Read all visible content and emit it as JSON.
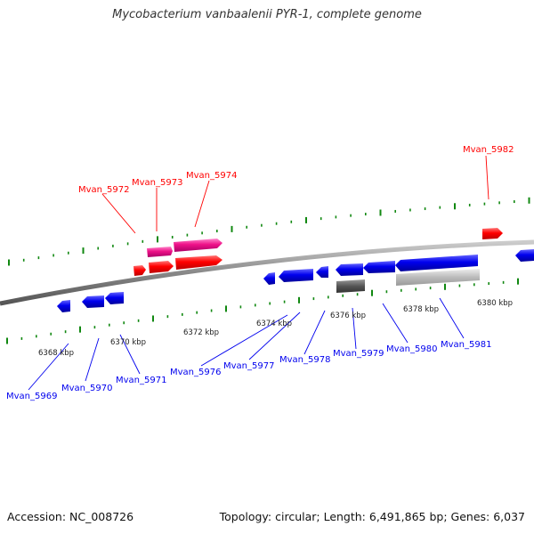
{
  "title": "Mycobacterium vanbaalenii PYR-1, complete genome",
  "accession_label": "Accession: NC_008726",
  "summary_label": "Topology: circular; Length: 6,491,865 bp; Genes: 6,037",
  "colors": {
    "forward_gene": "#ff0000",
    "forward_rna": "#ee1188",
    "reverse_gene": "#0000ee",
    "other_dark": "#555555",
    "other_light": "#bbbbbb",
    "tick": "#118811",
    "backbone": "#888888"
  },
  "kbp_labels": [
    "6368 kbp",
    "6370 kbp",
    "6372 kbp",
    "6374 kbp",
    "6376 kbp",
    "6378 kbp",
    "6380 kbp"
  ],
  "forward_genes": [
    "Mvan_5972",
    "Mvan_5973",
    "Mvan_5974",
    "Mvan_5982"
  ],
  "reverse_genes": [
    "Mvan_5969",
    "Mvan_5970",
    "Mvan_5971",
    "Mvan_5976",
    "Mvan_5977",
    "Mvan_5978",
    "Mvan_5979",
    "Mvan_5980",
    "Mvan_5981"
  ]
}
